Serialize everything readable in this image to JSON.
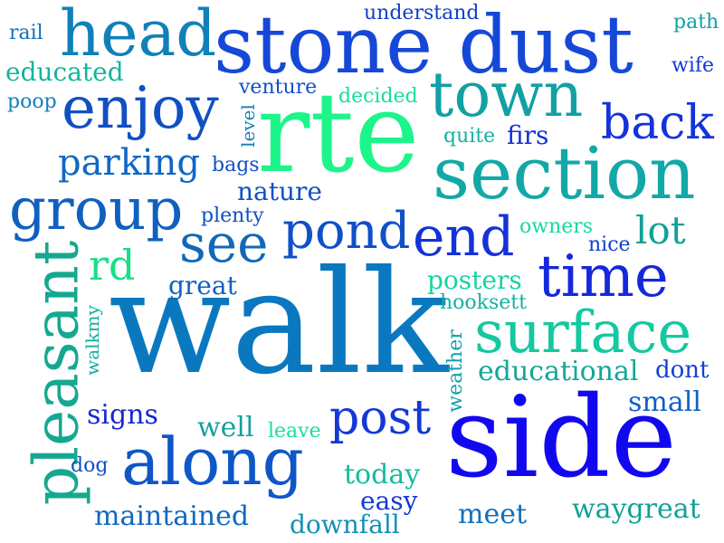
{
  "words": [
    {
      "text": "walk",
      "color": "#0a78bf"
    },
    {
      "text": "side",
      "color": "#1208f0"
    },
    {
      "text": "rte",
      "color": "#1cf58a"
    },
    {
      "text": "stone dust",
      "color": "#1648d8"
    },
    {
      "text": "section",
      "color": "#12a8a8"
    },
    {
      "text": "pleasant",
      "color": "#15a890"
    },
    {
      "text": "along",
      "color": "#0f56c8"
    },
    {
      "text": "head",
      "color": "#1080b8"
    },
    {
      "text": "town",
      "color": "#12a0a4"
    },
    {
      "text": "enjoy",
      "color": "#1050c4"
    },
    {
      "text": "group",
      "color": "#1060c0"
    },
    {
      "text": "surface",
      "color": "#14c8a0"
    },
    {
      "text": "time",
      "color": "#1428dc"
    },
    {
      "text": "pond",
      "color": "#1050c8"
    },
    {
      "text": "end",
      "color": "#1432d8"
    },
    {
      "text": "see",
      "color": "#1268b8"
    },
    {
      "text": "back",
      "color": "#1432dc"
    },
    {
      "text": "post",
      "color": "#1438d6"
    },
    {
      "text": "parking",
      "color": "#1068c4"
    },
    {
      "text": "rd",
      "color": "#18e088"
    },
    {
      "text": "lot",
      "color": "#12a096"
    },
    {
      "text": "educational",
      "color": "#12a898"
    },
    {
      "text": "maintained",
      "color": "#1068c0"
    },
    {
      "text": "waygreat",
      "color": "#12a098"
    },
    {
      "text": "educated",
      "color": "#14b4a0"
    },
    {
      "text": "nature",
      "color": "#1050c4"
    },
    {
      "text": "posters",
      "color": "#16d4a0"
    },
    {
      "text": "small",
      "color": "#1060c4"
    },
    {
      "text": "signs",
      "color": "#1428d0"
    },
    {
      "text": "well",
      "color": "#14a0a0"
    },
    {
      "text": "today",
      "color": "#14bca0"
    },
    {
      "text": "easy",
      "color": "#1438d4"
    },
    {
      "text": "meet",
      "color": "#1070c0"
    },
    {
      "text": "downfall",
      "color": "#1490b4"
    },
    {
      "text": "great",
      "color": "#1060c0"
    },
    {
      "text": "dont",
      "color": "#1440d4"
    },
    {
      "text": "firs",
      "color": "#1430d8"
    },
    {
      "text": "understand",
      "color": "#1040c8"
    },
    {
      "text": "path",
      "color": "#12a0a8"
    },
    {
      "text": "wife",
      "color": "#1438d8"
    },
    {
      "text": "rail",
      "color": "#1070c0"
    },
    {
      "text": "poop",
      "color": "#1480bc"
    },
    {
      "text": "venture",
      "color": "#1050c4"
    },
    {
      "text": "decided",
      "color": "#18e09c"
    },
    {
      "text": "quite",
      "color": "#14b0a4"
    },
    {
      "text": "bags",
      "color": "#1050c4"
    },
    {
      "text": "plenty",
      "color": "#1050c4"
    },
    {
      "text": "owners",
      "color": "#18d8a0"
    },
    {
      "text": "nice",
      "color": "#1040c8"
    },
    {
      "text": "hooksett",
      "color": "#14b0a4"
    },
    {
      "text": "weather",
      "color": "#12a0b0"
    },
    {
      "text": "walkmy",
      "color": "#14b0a0"
    },
    {
      "text": "level",
      "color": "#1480b8"
    },
    {
      "text": "leave",
      "color": "#18e098"
    },
    {
      "text": "dog",
      "color": "#1050c4"
    }
  ]
}
